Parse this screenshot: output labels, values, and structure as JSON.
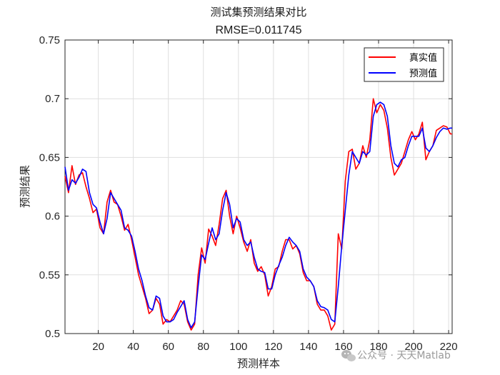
{
  "chart_data": {
    "type": "line",
    "title": "测试集预测结果对比",
    "subtitle": "RMSE=0.011745",
    "xlabel": "预测样本",
    "ylabel": "预测结果",
    "xlim": [
      1,
      222
    ],
    "ylim": [
      0.5,
      0.75
    ],
    "xticks": [
      20,
      40,
      60,
      80,
      100,
      120,
      140,
      160,
      180,
      200,
      220
    ],
    "yticks": [
      0.5,
      0.55,
      0.6,
      0.65,
      0.7,
      0.75
    ],
    "xtick_labels": [
      "20",
      "40",
      "60",
      "80",
      "100",
      "120",
      "140",
      "160",
      "180",
      "200",
      "220"
    ],
    "ytick_labels": [
      "0.5",
      "0.55",
      "0.6",
      "0.65",
      "0.7",
      "0.75"
    ],
    "grid": true,
    "legend_position": "top-right",
    "series": [
      {
        "name": "真实值",
        "color": "#ff0000",
        "x": [
          1,
          3,
          5,
          7,
          9,
          11,
          13,
          15,
          17,
          19,
          21,
          23,
          25,
          27,
          29,
          31,
          33,
          35,
          37,
          39,
          41,
          43,
          45,
          47,
          49,
          51,
          53,
          55,
          57,
          59,
          61,
          63,
          65,
          67,
          69,
          71,
          73,
          75,
          77,
          79,
          81,
          83,
          85,
          87,
          89,
          91,
          93,
          95,
          97,
          99,
          101,
          103,
          105,
          107,
          109,
          111,
          113,
          115,
          117,
          119,
          121,
          123,
          125,
          127,
          129,
          131,
          133,
          135,
          137,
          139,
          141,
          143,
          145,
          147,
          149,
          151,
          153,
          155,
          157,
          159,
          161,
          163,
          165,
          167,
          169,
          171,
          173,
          175,
          177,
          179,
          181,
          183,
          185,
          187,
          189,
          191,
          193,
          195,
          197,
          199,
          201,
          203,
          205,
          207,
          209,
          211,
          213,
          215,
          217,
          219,
          221,
          222
        ],
        "y": [
          0.634,
          0.62,
          0.643,
          0.627,
          0.635,
          0.637,
          0.625,
          0.615,
          0.603,
          0.606,
          0.59,
          0.585,
          0.612,
          0.622,
          0.612,
          0.61,
          0.6,
          0.588,
          0.593,
          0.58,
          0.565,
          0.55,
          0.54,
          0.53,
          0.517,
          0.52,
          0.53,
          0.525,
          0.508,
          0.512,
          0.51,
          0.515,
          0.52,
          0.528,
          0.525,
          0.51,
          0.503,
          0.508,
          0.55,
          0.573,
          0.56,
          0.589,
          0.583,
          0.575,
          0.593,
          0.615,
          0.622,
          0.6,
          0.585,
          0.6,
          0.59,
          0.578,
          0.57,
          0.58,
          0.56,
          0.553,
          0.557,
          0.55,
          0.532,
          0.54,
          0.555,
          0.557,
          0.57,
          0.58,
          0.58,
          0.572,
          0.575,
          0.568,
          0.552,
          0.545,
          0.545,
          0.54,
          0.525,
          0.52,
          0.52,
          0.515,
          0.503,
          0.508,
          0.585,
          0.572,
          0.63,
          0.655,
          0.657,
          0.64,
          0.645,
          0.66,
          0.65,
          0.665,
          0.7,
          0.688,
          0.695,
          0.69,
          0.675,
          0.65,
          0.635,
          0.64,
          0.645,
          0.655,
          0.665,
          0.672,
          0.665,
          0.67,
          0.68,
          0.648,
          0.655,
          0.66,
          0.673,
          0.675,
          0.677,
          0.676,
          0.67,
          0.67
        ]
      },
      {
        "name": "预测值",
        "color": "#0000ff",
        "x": [
          1,
          3,
          5,
          7,
          9,
          11,
          13,
          15,
          17,
          19,
          21,
          23,
          25,
          27,
          29,
          31,
          33,
          35,
          37,
          39,
          41,
          43,
          45,
          47,
          49,
          51,
          53,
          55,
          57,
          59,
          61,
          63,
          65,
          67,
          69,
          71,
          73,
          75,
          77,
          79,
          81,
          83,
          85,
          87,
          89,
          91,
          93,
          95,
          97,
          99,
          101,
          103,
          105,
          107,
          109,
          111,
          113,
          115,
          117,
          119,
          121,
          123,
          125,
          127,
          129,
          131,
          133,
          135,
          137,
          139,
          141,
          143,
          145,
          147,
          149,
          151,
          153,
          155,
          157,
          159,
          161,
          163,
          165,
          167,
          169,
          171,
          173,
          175,
          177,
          179,
          181,
          183,
          185,
          187,
          189,
          191,
          193,
          195,
          197,
          199,
          201,
          203,
          205,
          207,
          209,
          211,
          213,
          215,
          217,
          219,
          221,
          222
        ],
        "y": [
          0.642,
          0.622,
          0.631,
          0.628,
          0.633,
          0.64,
          0.638,
          0.62,
          0.61,
          0.607,
          0.595,
          0.585,
          0.598,
          0.62,
          0.615,
          0.61,
          0.605,
          0.59,
          0.588,
          0.583,
          0.57,
          0.555,
          0.545,
          0.532,
          0.522,
          0.52,
          0.532,
          0.53,
          0.515,
          0.51,
          0.51,
          0.512,
          0.518,
          0.523,
          0.528,
          0.512,
          0.505,
          0.51,
          0.54,
          0.567,
          0.563,
          0.577,
          0.59,
          0.58,
          0.585,
          0.605,
          0.62,
          0.61,
          0.59,
          0.598,
          0.595,
          0.58,
          0.575,
          0.578,
          0.565,
          0.555,
          0.553,
          0.552,
          0.538,
          0.538,
          0.55,
          0.558,
          0.565,
          0.575,
          0.582,
          0.578,
          0.575,
          0.57,
          0.555,
          0.548,
          0.545,
          0.54,
          0.528,
          0.523,
          0.522,
          0.52,
          0.512,
          0.51,
          0.54,
          0.575,
          0.605,
          0.635,
          0.655,
          0.65,
          0.645,
          0.655,
          0.652,
          0.655,
          0.685,
          0.695,
          0.697,
          0.695,
          0.685,
          0.66,
          0.645,
          0.642,
          0.648,
          0.65,
          0.66,
          0.668,
          0.668,
          0.668,
          0.675,
          0.658,
          0.655,
          0.66,
          0.667,
          0.672,
          0.675,
          0.674,
          0.675,
          0.675
        ]
      }
    ]
  },
  "watermark": {
    "icon": "wechat-icon",
    "text": "公众号 · 天天Matlab"
  }
}
